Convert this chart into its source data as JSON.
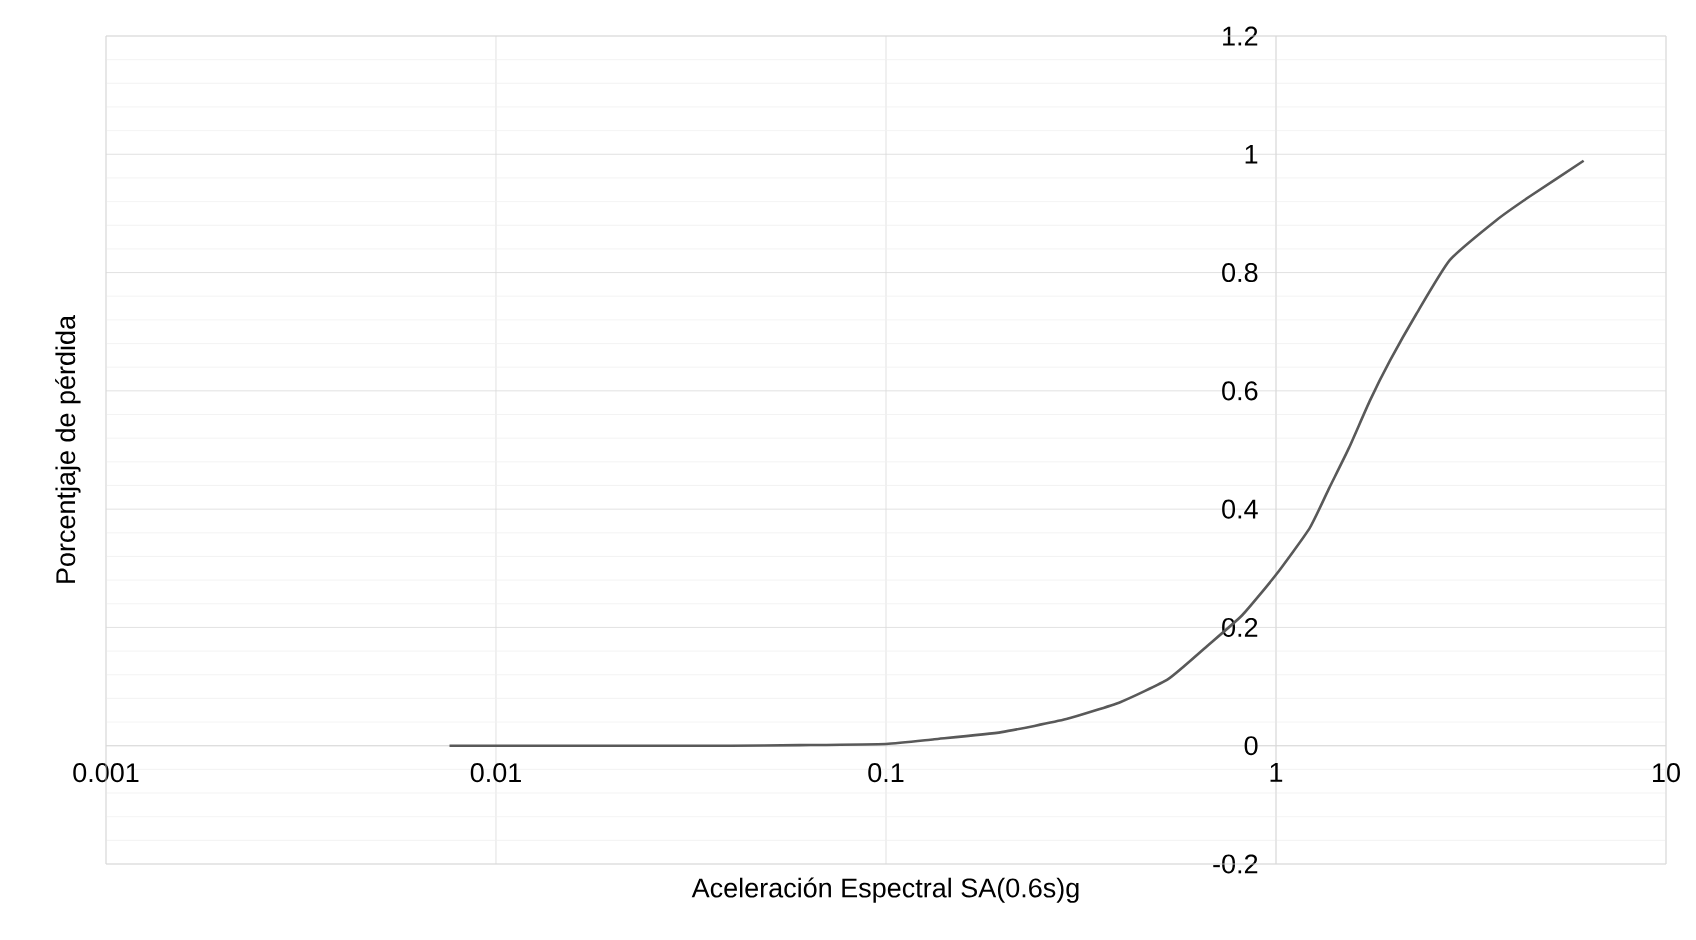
{
  "chart_data": {
    "type": "line",
    "xlabel": "Aceleración Espectral SA(0.6s)g",
    "ylabel": "Porcentjaje de pérdida",
    "log": "x",
    "grid": true,
    "xlim": [
      0.001,
      10
    ],
    "ylim": [
      -0.2,
      1.2
    ],
    "xticks": [
      0.001,
      0.01,
      0.1,
      1,
      10
    ],
    "yticks": [
      -0.2,
      0,
      0.2,
      0.4,
      0.6,
      0.8,
      1,
      1.2
    ],
    "x": [
      0.0076,
      0.02,
      0.04,
      0.06,
      0.1,
      0.133,
      0.198,
      0.29,
      0.4,
      0.53,
      0.67,
      0.82,
      1,
      1.22,
      1.37,
      1.54,
      1.74,
      1.96,
      2.29,
      2.79,
      3.68,
      4.48,
      6.15
    ],
    "series": [
      {
        "color": "#595959",
        "values": [
          0,
          0,
          0,
          0.001,
          0.003,
          0.011,
          0.023,
          0.045,
          0.074,
          0.113,
          0.17,
          0.221,
          0.289,
          0.368,
          0.436,
          0.504,
          0.583,
          0.651,
          0.73,
          0.821,
          0.889,
          0.929,
          0.989
        ]
      }
    ]
  }
}
